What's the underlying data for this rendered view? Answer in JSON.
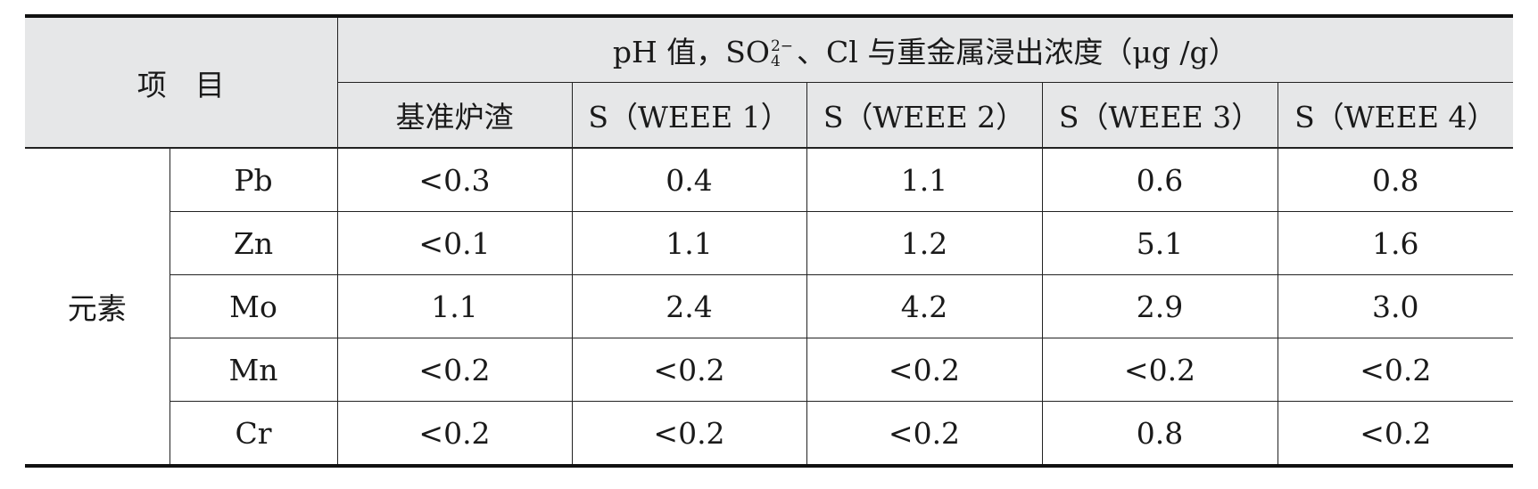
{
  "header": {
    "item_label": "项目",
    "group_prefix": "pH 值，SO",
    "so4_superscript": "2−",
    "so4_subscript": "4",
    "group_suffix": "、Cl 与重金属浸出浓度（μg /g）",
    "columns": [
      "基准炉渣",
      "S（WEEE 1）",
      "S（WEEE 2）",
      "S（WEEE 3）",
      "S（WEEE 4）"
    ]
  },
  "body": {
    "category": "元素",
    "rows": [
      {
        "element": "Pb",
        "values": [
          "<0.3",
          "0.4",
          "1.1",
          "0.6",
          "0.8"
        ]
      },
      {
        "element": "Zn",
        "values": [
          "<0.1",
          "1.1",
          "1.2",
          "5.1",
          "1.6"
        ]
      },
      {
        "element": "Mo",
        "values": [
          "1.1",
          "2.4",
          "4.2",
          "2.9",
          "3.0"
        ]
      },
      {
        "element": "Mn",
        "values": [
          "<0.2",
          "<0.2",
          "<0.2",
          "<0.2",
          "<0.2"
        ]
      },
      {
        "element": "Cr",
        "values": [
          "<0.2",
          "<0.2",
          "<0.2",
          "0.8",
          "<0.2"
        ]
      }
    ]
  }
}
